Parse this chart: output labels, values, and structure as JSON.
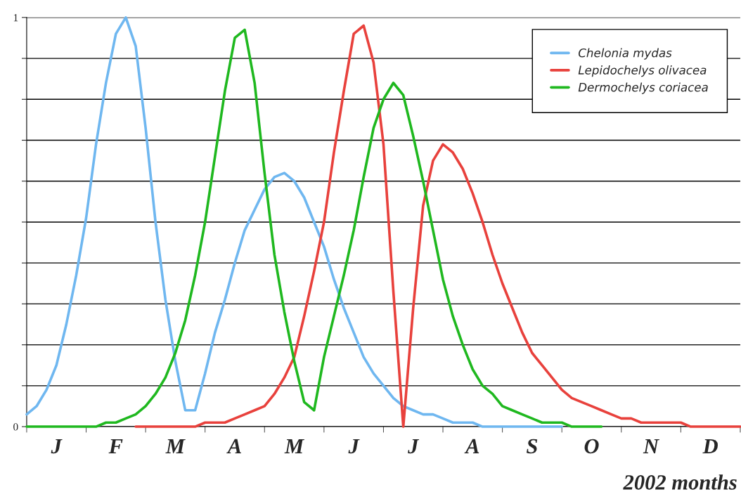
{
  "chart_data": {
    "type": "line",
    "xlabel": "2002 months",
    "categories": [
      null,
      null,
      null,
      "J",
      null,
      null,
      null,
      null,
      null,
      "F",
      null,
      null,
      null,
      null,
      null,
      "M",
      null,
      null,
      null,
      null,
      null,
      "A",
      null,
      null,
      null,
      null,
      null,
      "M",
      null,
      null,
      null,
      null,
      null,
      "J",
      null,
      null,
      null,
      null,
      null,
      "J",
      null,
      null,
      null,
      null,
      null,
      "A",
      null,
      null,
      null,
      null,
      null,
      "S",
      null,
      null,
      null,
      null,
      null,
      "O",
      null,
      null,
      null,
      null,
      null,
      "N",
      null,
      null,
      null,
      null,
      null,
      "D",
      null,
      null,
      null
    ],
    "ylim": [
      0,
      1
    ],
    "yticks": [
      0,
      {
        "value": 0.1,
        "label": null
      },
      {
        "value": 0.2,
        "label": null
      },
      {
        "value": 0.3,
        "label": null
      },
      {
        "value": 0.4,
        "label": null
      },
      {
        "value": 0.5,
        "label": null
      },
      {
        "value": 0.6,
        "label": null
      },
      {
        "value": 0.7,
        "label": null
      },
      {
        "value": 0.8,
        "label": null
      },
      {
        "value": 0.9,
        "label": null
      },
      1
    ],
    "grid": "y",
    "legend": "top right",
    "marker": "none",
    "line_style": "solid",
    "series": [
      {
        "name": "Chelonia mydas",
        "color": "#6fb7f0",
        "values": [
          0.03,
          0.05,
          0.09,
          0.15,
          0.25,
          0.37,
          0.51,
          0.69,
          0.84,
          0.96,
          1.0,
          0.93,
          0.73,
          0.5,
          0.31,
          0.16,
          0.04,
          0.04,
          0.13,
          0.23,
          0.31,
          0.4,
          0.48,
          0.53,
          0.58,
          0.61,
          0.62,
          0.6,
          0.56,
          0.5,
          0.44,
          0.36,
          0.29,
          0.23,
          0.17,
          0.13,
          0.1,
          0.07,
          0.05,
          0.04,
          0.03,
          0.03,
          0.02,
          0.01,
          0.01,
          0.01,
          0.0,
          0,
          0,
          0,
          0,
          0,
          0,
          0,
          0,
          null,
          null,
          null,
          null,
          null,
          null,
          null,
          null,
          null,
          null,
          null,
          null,
          null,
          null,
          null,
          null,
          null,
          null
        ]
      },
      {
        "name": "Lepidochelys olivacea",
        "color": "#e8413c",
        "values": [
          null,
          null,
          null,
          null,
          null,
          null,
          null,
          null,
          null,
          null,
          null,
          0,
          0,
          0,
          0,
          0,
          0,
          0,
          0.01,
          0.01,
          0.01,
          0.02,
          0.03,
          0.04,
          0.05,
          0.08,
          0.12,
          0.17,
          0.27,
          0.38,
          0.5,
          0.67,
          0.82,
          0.96,
          0.98,
          0.89,
          0.69,
          0.33,
          0,
          0.29,
          0.54,
          0.65,
          0.69,
          0.67,
          0.63,
          0.57,
          0.5,
          0.42,
          0.35,
          0.29,
          0.23,
          0.18,
          0.15,
          0.12,
          0.09,
          0.07,
          0.06,
          0.05,
          0.04,
          0.03,
          0.02,
          0.02,
          0.01,
          0.01,
          0.01,
          0.01,
          0.01,
          0,
          0,
          0,
          0,
          0,
          0
        ]
      },
      {
        "name": "Dermochelys coriacea",
        "color": "#1fb81f",
        "values": [
          0,
          0,
          0,
          0,
          0,
          0,
          0,
          0,
          0.01,
          0.01,
          0.02,
          0.03,
          0.05,
          0.08,
          0.12,
          0.18,
          0.26,
          0.37,
          0.5,
          0.66,
          0.82,
          0.95,
          0.97,
          0.84,
          0.62,
          0.42,
          0.28,
          0.16,
          0.06,
          0.04,
          0.17,
          0.27,
          0.37,
          0.48,
          0.61,
          0.73,
          0.8,
          0.84,
          0.81,
          0.71,
          0.6,
          0.48,
          0.36,
          0.27,
          0.2,
          0.14,
          0.1,
          0.08,
          0.05,
          0.04,
          0.03,
          0.02,
          0.01,
          0.01,
          0.01,
          0,
          0,
          0,
          0,
          null,
          null,
          null,
          null,
          null,
          null,
          null,
          null,
          null,
          null,
          null,
          null,
          null,
          null
        ]
      }
    ]
  }
}
